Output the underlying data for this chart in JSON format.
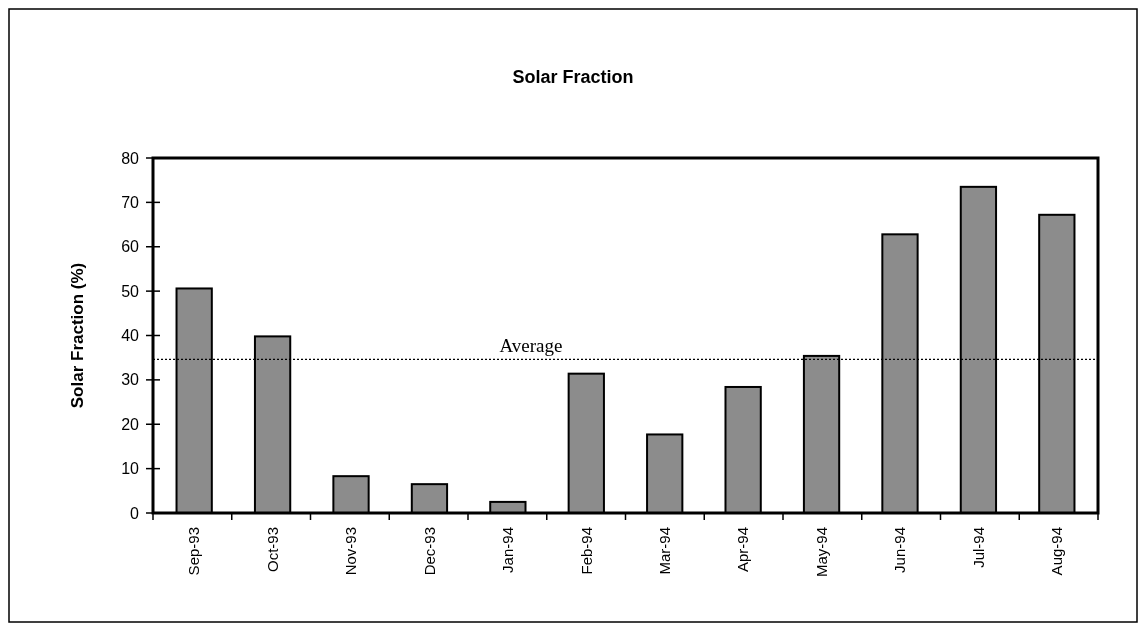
{
  "chart_data": {
    "type": "bar",
    "title": "Solar Fraction",
    "ylabel": "Solar Fraction (%)",
    "categories": [
      "Sep-93",
      "Oct-93",
      "Nov-93",
      "Dec-93",
      "Jan-94",
      "Feb-94",
      "Mar-94",
      "Apr-94",
      "May-94",
      "Jun-94",
      "Jul-94",
      "Aug-94"
    ],
    "values": [
      50.6,
      39.8,
      8.3,
      6.5,
      2.5,
      31.4,
      17.7,
      28.4,
      35.4,
      62.8,
      73.5,
      67.2
    ],
    "color": "#8c8c8c",
    "ylim": [
      0,
      80
    ],
    "yticks": [
      0,
      10,
      20,
      30,
      40,
      50,
      60,
      70,
      80
    ],
    "ref_lines": [
      {
        "axis": "y",
        "value": 34.6,
        "label": "Average",
        "line_style": "dotted",
        "color": "#000000"
      }
    ],
    "grid": false
  }
}
